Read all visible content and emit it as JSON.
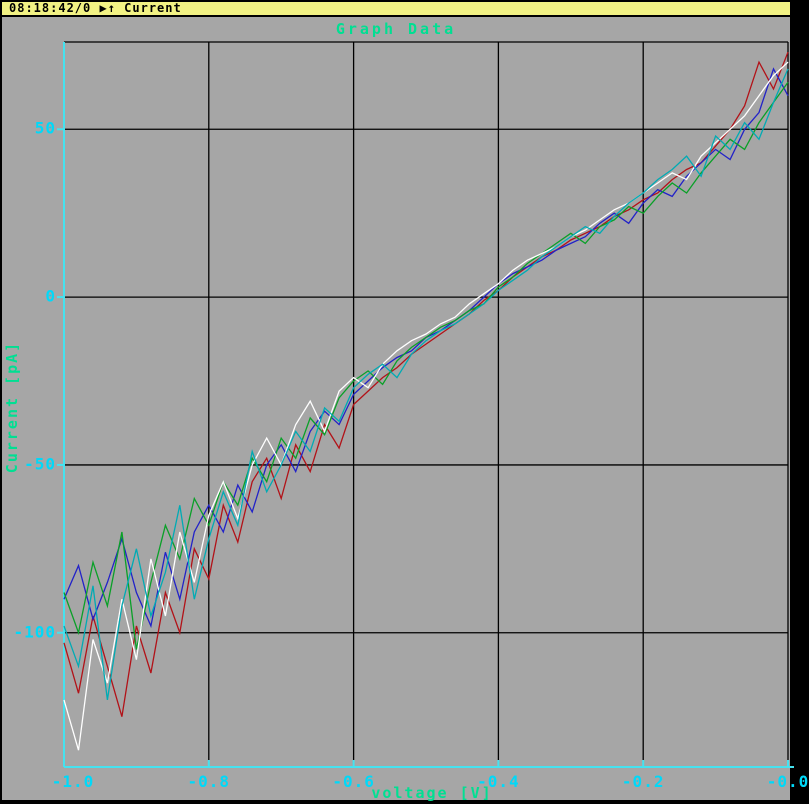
{
  "window": {
    "title": "08:18:42/0 ▶↑ Current"
  },
  "colors": {
    "background": "#a6a6a6",
    "titlebar_bg": "#f2f284",
    "titlebar_text": "#000000",
    "axis": "#45e2ef",
    "tick_label": "#00d9f9",
    "label_green": "#00df92",
    "grid": "#000000"
  },
  "chart_data": {
    "type": "line",
    "title": "Graph Data",
    "xlabel": "voltage [V]",
    "ylabel": "Current [pA]",
    "grid": true,
    "legend": "none",
    "xlim": [
      -1.0,
      0.0
    ],
    "ylim": [
      -140,
      76
    ],
    "x_ticks": [
      -1.0,
      -0.8,
      -0.6,
      -0.4,
      -0.2,
      -0.0
    ],
    "x_tick_labels": [
      "-1.0",
      "-0.8",
      "-0.6",
      "-0.4",
      "-0.2",
      "-0.0"
    ],
    "y_ticks": [
      50,
      0,
      -50,
      -100
    ],
    "y_tick_labels": [
      "50",
      "0",
      "-50",
      "-100"
    ],
    "x_start": -1.0,
    "x_step": 0.02,
    "series": [
      {
        "name": "red",
        "color": "#b21218",
        "values": [
          -103,
          -118,
          -95,
          -110,
          -125,
          -98,
          -112,
          -88,
          -100,
          -75,
          -84,
          -62,
          -73,
          -55,
          -48,
          -60,
          -44,
          -52,
          -38,
          -45,
          -32,
          -28,
          -24,
          -21,
          -17,
          -14,
          -11,
          -8,
          -5,
          -1,
          2,
          6,
          9,
          12,
          14,
          17,
          19,
          21,
          24,
          26,
          29,
          31,
          35,
          38,
          40,
          45,
          50,
          57,
          70,
          62,
          73
        ]
      },
      {
        "name": "blue",
        "color": "#2222c8",
        "values": [
          -90,
          -80,
          -96,
          -85,
          -72,
          -88,
          -98,
          -76,
          -90,
          -70,
          -62,
          -70,
          -56,
          -64,
          -50,
          -44,
          -52,
          -40,
          -34,
          -38,
          -29,
          -25,
          -21,
          -18,
          -16,
          -12,
          -10,
          -7,
          -4,
          0,
          4,
          7,
          9,
          11,
          14,
          16,
          18,
          22,
          25,
          22,
          28,
          32,
          30,
          36,
          40,
          44,
          41,
          50,
          55,
          68,
          60
        ]
      },
      {
        "name": "green",
        "color": "#0aa028",
        "values": [
          -88,
          -100,
          -79,
          -92,
          -70,
          -105,
          -85,
          -68,
          -78,
          -60,
          -68,
          -55,
          -62,
          -48,
          -55,
          -42,
          -48,
          -36,
          -41,
          -30,
          -25,
          -22,
          -26,
          -19,
          -15,
          -12,
          -9,
          -7,
          -4,
          -2,
          3,
          6,
          10,
          13,
          16,
          19,
          16,
          21,
          23,
          27,
          25,
          30,
          34,
          31,
          37,
          42,
          47,
          44,
          52,
          58,
          64
        ]
      },
      {
        "name": "white",
        "color": "#ffffff",
        "values": [
          -120,
          -135,
          -102,
          -115,
          -90,
          -108,
          -78,
          -95,
          -70,
          -85,
          -65,
          -55,
          -66,
          -50,
          -42,
          -50,
          -38,
          -31,
          -40,
          -28,
          -24,
          -27,
          -20,
          -16,
          -13,
          -11,
          -8,
          -6,
          -2,
          1,
          4,
          8,
          11,
          13,
          15,
          18,
          20,
          23,
          26,
          28,
          31,
          34,
          37,
          35,
          42,
          46,
          50,
          54,
          60,
          66,
          70
        ]
      },
      {
        "name": "teal",
        "color": "#00abb4",
        "values": [
          -98,
          -110,
          -86,
          -120,
          -92,
          -75,
          -95,
          -82,
          -62,
          -90,
          -72,
          -58,
          -68,
          -46,
          -58,
          -50,
          -40,
          -46,
          -33,
          -37,
          -27,
          -23,
          -20,
          -24,
          -17,
          -13,
          -10,
          -8,
          -5,
          -2,
          2,
          5,
          8,
          12,
          15,
          18,
          21,
          19,
          24,
          28,
          31,
          35,
          38,
          42,
          36,
          48,
          44,
          52,
          47,
          58,
          68
        ]
      }
    ]
  }
}
